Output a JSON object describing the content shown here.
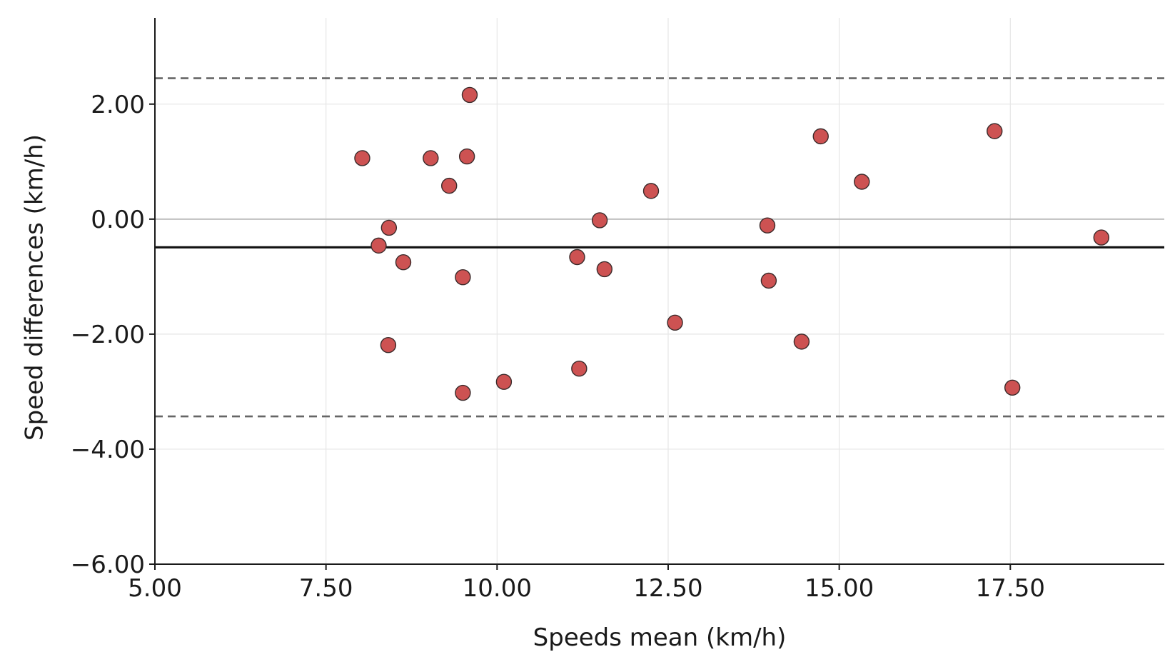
{
  "chart_data": {
    "type": "scatter",
    "title": "",
    "xlabel": "Speeds mean (km/h)",
    "ylabel": "Speed differences (km/h)",
    "xlim": [
      5.0,
      19.75
    ],
    "ylim": [
      -6.0,
      3.5
    ],
    "xticks": [
      5.0,
      7.5,
      10.0,
      12.5,
      15.0,
      17.5
    ],
    "xtick_labels": [
      "5.00",
      "7.50",
      "10.00",
      "12.50",
      "15.00",
      "17.50"
    ],
    "yticks": [
      -6.0,
      -4.0,
      -2.0,
      0.0,
      2.0
    ],
    "ytick_labels": [
      "−6.00",
      "−4.00",
      "−2.00",
      "0.00",
      "2.00"
    ],
    "grid": true,
    "point_color": "#cd5252",
    "point_edge_color": "#3a2a2a",
    "reference_lines": [
      {
        "kind": "zero",
        "y": 0.0,
        "style": "solid",
        "color": "#bfbfbf"
      },
      {
        "kind": "mean_difference",
        "y": -0.49,
        "style": "solid",
        "color": "#111111"
      },
      {
        "kind": "upper_limit_of_agreement",
        "y": 2.45,
        "style": "dashed",
        "color": "#666666"
      },
      {
        "kind": "lower_limit_of_agreement",
        "y": -3.43,
        "style": "dashed",
        "color": "#666666"
      }
    ],
    "points": [
      {
        "x": 8.03,
        "y": 1.06
      },
      {
        "x": 8.27,
        "y": -0.46
      },
      {
        "x": 8.42,
        "y": -0.15
      },
      {
        "x": 8.41,
        "y": -2.19
      },
      {
        "x": 8.63,
        "y": -0.75
      },
      {
        "x": 9.03,
        "y": 1.06
      },
      {
        "x": 9.3,
        "y": 0.58
      },
      {
        "x": 9.5,
        "y": -1.01
      },
      {
        "x": 9.5,
        "y": -3.02
      },
      {
        "x": 9.56,
        "y": 1.09
      },
      {
        "x": 9.6,
        "y": 2.16
      },
      {
        "x": 10.1,
        "y": -2.83
      },
      {
        "x": 11.17,
        "y": -0.66
      },
      {
        "x": 11.2,
        "y": -2.6
      },
      {
        "x": 11.5,
        "y": -0.02
      },
      {
        "x": 11.57,
        "y": -0.87
      },
      {
        "x": 12.25,
        "y": 0.49
      },
      {
        "x": 12.6,
        "y": -1.8
      },
      {
        "x": 13.95,
        "y": -0.11
      },
      {
        "x": 13.97,
        "y": -1.07
      },
      {
        "x": 14.45,
        "y": -2.13
      },
      {
        "x": 14.73,
        "y": 1.44
      },
      {
        "x": 15.33,
        "y": 0.65
      },
      {
        "x": 17.27,
        "y": 1.53
      },
      {
        "x": 17.53,
        "y": -2.93
      },
      {
        "x": 18.83,
        "y": -0.32
      }
    ]
  }
}
